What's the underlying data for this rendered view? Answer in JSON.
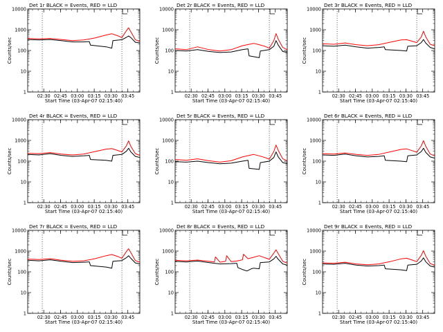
{
  "chart_data": {
    "type": "line",
    "layout": "3x3 grid",
    "x_axis_ticks": [
      "02:30",
      "02:45",
      "03:00",
      "03:15",
      "03:30",
      "03:45"
    ],
    "x_range_minutes_after_start": [
      0,
      100
    ],
    "x_tick_positions_minutes": [
      14.33,
      29.33,
      44.33,
      59.33,
      74.33,
      89.33
    ],
    "ylabel": "Counts/sec",
    "xlabel": "Start Time (03-Apr-07 02:15:40)",
    "y_scale": "log",
    "y_range": [
      1,
      10000
    ],
    "y_ticks": [
      "1",
      "10",
      "100",
      "1000",
      "10000"
    ],
    "legend_text": "BLACK = Events, RED = LLD",
    "series_colors": {
      "events": "#000000",
      "lld": "#ff0000"
    },
    "panels": [
      {
        "title": "Det 1r BLACK = Events, RED = LLD",
        "vlines_minutes": [
          13,
          84
        ],
        "series": [
          {
            "name": "Events",
            "x": [
              0,
              10,
              20,
              30,
              40,
              50,
              55,
              56,
              70,
              75,
              76,
              84,
              88,
              90,
              92,
              96,
              100
            ],
            "y": [
              340,
              320,
              340,
              300,
              260,
              260,
              270,
              180,
              150,
              130,
              300,
              330,
              430,
              500,
              420,
              250,
              230
            ]
          },
          {
            "name": "LLD",
            "x": [
              0,
              10,
              20,
              30,
              40,
              50,
              60,
              70,
              75,
              80,
              84,
              88,
              90,
              92,
              96,
              100
            ],
            "y": [
              380,
              360,
              380,
              340,
              300,
              320,
              400,
              560,
              640,
              520,
              420,
              900,
              1250,
              800,
              330,
              270
            ]
          }
        ]
      },
      {
        "title": "Det 2r BLACK = Events, RED = LLD",
        "vlines_minutes": [
          13,
          84
        ],
        "series": [
          {
            "name": "Events",
            "x": [
              0,
              10,
              20,
              30,
              40,
              50,
              60,
              65,
              66,
              75,
              76,
              84,
              88,
              90,
              92,
              96,
              100
            ],
            "y": [
              100,
              95,
              110,
              90,
              80,
              85,
              110,
              120,
              55,
              45,
              95,
              110,
              160,
              300,
              180,
              90,
              80
            ]
          },
          {
            "name": "LLD",
            "x": [
              0,
              10,
              20,
              30,
              40,
              50,
              60,
              70,
              75,
              80,
              84,
              88,
              90,
              92,
              96,
              100
            ],
            "y": [
              120,
              110,
              150,
              110,
              95,
              110,
              170,
              220,
              190,
              160,
              130,
              300,
              650,
              350,
              140,
              110
            ]
          }
        ]
      },
      {
        "title": "Det 3r BLACK = Events, RED = LLD",
        "vlines_minutes": [
          13,
          84
        ],
        "series": [
          {
            "name": "Events",
            "x": [
              0,
              10,
              20,
              30,
              40,
              50,
              55,
              56,
              70,
              75,
              76,
              84,
              88,
              90,
              92,
              96,
              100
            ],
            "y": [
              170,
              160,
              180,
              150,
              130,
              140,
              150,
              110,
              100,
              95,
              160,
              170,
              240,
              340,
              230,
              140,
              120
            ]
          },
          {
            "name": "LLD",
            "x": [
              0,
              10,
              20,
              30,
              40,
              50,
              60,
              70,
              75,
              80,
              84,
              88,
              90,
              92,
              96,
              100
            ],
            "y": [
              210,
              200,
              230,
              190,
              170,
              190,
              250,
              320,
              330,
              280,
              240,
              450,
              850,
              460,
              200,
              170
            ]
          }
        ]
      },
      {
        "title": "Det 4r BLACK = Events, RED = LLD",
        "vlines_minutes": [
          13,
          84
        ],
        "series": [
          {
            "name": "Events",
            "x": [
              0,
              10,
              20,
              30,
              40,
              50,
              55,
              56,
              70,
              75,
              76,
              84,
              88,
              90,
              92,
              96,
              100
            ],
            "y": [
              210,
              200,
              230,
              190,
              170,
              180,
              190,
              120,
              110,
              100,
              190,
              210,
              300,
              420,
              280,
              170,
              150
            ]
          },
          {
            "name": "LLD",
            "x": [
              0,
              10,
              20,
              30,
              40,
              50,
              60,
              70,
              75,
              80,
              84,
              88,
              90,
              92,
              96,
              100
            ],
            "y": [
              240,
              230,
              260,
              220,
              200,
              220,
              290,
              380,
              400,
              330,
              280,
              550,
              950,
              520,
              230,
              190
            ]
          }
        ]
      },
      {
        "title": "Det 5r BLACK = Events, RED = LLD",
        "vlines_minutes": [
          13,
          84
        ],
        "series": [
          {
            "name": "Events",
            "x": [
              0,
              10,
              20,
              30,
              40,
              50,
              60,
              65,
              66,
              75,
              76,
              84,
              88,
              90,
              92,
              96,
              100
            ],
            "y": [
              95,
              90,
              100,
              85,
              75,
              80,
              100,
              110,
              45,
              40,
              85,
              100,
              150,
              280,
              160,
              85,
              75
            ]
          },
          {
            "name": "LLD",
            "x": [
              0,
              10,
              20,
              30,
              40,
              50,
              60,
              70,
              75,
              80,
              84,
              88,
              90,
              92,
              96,
              100
            ],
            "y": [
              120,
              110,
              130,
              105,
              90,
              105,
              160,
              210,
              180,
              150,
              125,
              290,
              600,
              330,
              130,
              105
            ]
          }
        ]
      },
      {
        "title": "Det 6r BLACK = Events, RED = LLD",
        "vlines_minutes": [
          13,
          84
        ],
        "series": [
          {
            "name": "Events",
            "x": [
              0,
              10,
              20,
              30,
              40,
              50,
              55,
              56,
              70,
              75,
              76,
              84,
              88,
              90,
              92,
              96,
              100
            ],
            "y": [
              200,
              190,
              220,
              180,
              160,
              170,
              180,
              110,
              100,
              95,
              180,
              200,
              290,
              420,
              270,
              160,
              140
            ]
          },
          {
            "name": "LLD",
            "x": [
              0,
              10,
              20,
              30,
              40,
              50,
              60,
              70,
              75,
              80,
              84,
              88,
              90,
              92,
              96,
              100
            ],
            "y": [
              230,
              220,
              250,
              210,
              190,
              210,
              280,
              370,
              390,
              320,
              270,
              540,
              980,
              530,
              220,
              180
            ]
          }
        ]
      },
      {
        "title": "Det 7r BLACK = Events, RED = LLD",
        "vlines_minutes": [
          13,
          84
        ],
        "series": [
          {
            "name": "Events",
            "x": [
              0,
              10,
              20,
              30,
              40,
              50,
              55,
              56,
              70,
              75,
              76,
              84,
              88,
              90,
              92,
              96,
              100
            ],
            "y": [
              360,
              340,
              380,
              320,
              280,
              290,
              300,
              200,
              170,
              150,
              320,
              350,
              480,
              600,
              450,
              270,
              240
            ]
          },
          {
            "name": "LLD",
            "x": [
              0,
              10,
              20,
              30,
              40,
              50,
              60,
              70,
              75,
              80,
              84,
              88,
              90,
              92,
              96,
              100
            ],
            "y": [
              410,
              390,
              430,
              360,
              320,
              340,
              430,
              600,
              680,
              560,
              450,
              950,
              1300,
              850,
              350,
              290
            ]
          }
        ]
      },
      {
        "title": "Det 8r BLACK = Events, RED = LLD",
        "vlines_minutes": [
          13,
          84
        ],
        "series": [
          {
            "name": "Events",
            "x": [
              0,
              10,
              20,
              30,
              40,
              50,
              55,
              56,
              60,
              64,
              68,
              70,
              75,
              76,
              84,
              88,
              90,
              92,
              96,
              100
            ],
            "y": [
              320,
              300,
              330,
              280,
              240,
              250,
              260,
              160,
              130,
              110,
              140,
              150,
              140,
              280,
              300,
              420,
              560,
              400,
              240,
              210
            ]
          },
          {
            "name": "LLD",
            "x": [
              0,
              10,
              20,
              30,
              35,
              36,
              40,
              45,
              46,
              50,
              55,
              60,
              61,
              65,
              70,
              75,
              80,
              84,
              88,
              90,
              92,
              96,
              100
            ],
            "y": [
              360,
              340,
              370,
              320,
              300,
              520,
              290,
              320,
              600,
              310,
              330,
              380,
              700,
              430,
              500,
              600,
              480,
              400,
              800,
              1150,
              750,
              320,
              260
            ]
          }
        ]
      },
      {
        "title": "Det 9r BLACK = Events, RED = LLD",
        "vlines_minutes": [
          13,
          84
        ],
        "series": [
          {
            "name": "Events",
            "x": [
              0,
              10,
              20,
              30,
              40,
              50,
              55,
              56,
              70,
              75,
              76,
              84,
              88,
              90,
              92,
              96,
              100
            ],
            "y": [
              240,
              230,
              260,
              210,
              190,
              200,
              210,
              140,
              125,
              115,
              210,
              230,
              330,
              470,
              310,
              190,
              170
            ]
          },
          {
            "name": "LLD",
            "x": [
              0,
              10,
              20,
              30,
              40,
              50,
              60,
              70,
              75,
              80,
              84,
              88,
              90,
              92,
              96,
              100
            ],
            "y": [
              270,
              260,
              290,
              240,
              220,
              240,
              310,
              420,
              450,
              370,
              310,
              620,
              1050,
              580,
              250,
              210
            ]
          }
        ]
      }
    ]
  }
}
